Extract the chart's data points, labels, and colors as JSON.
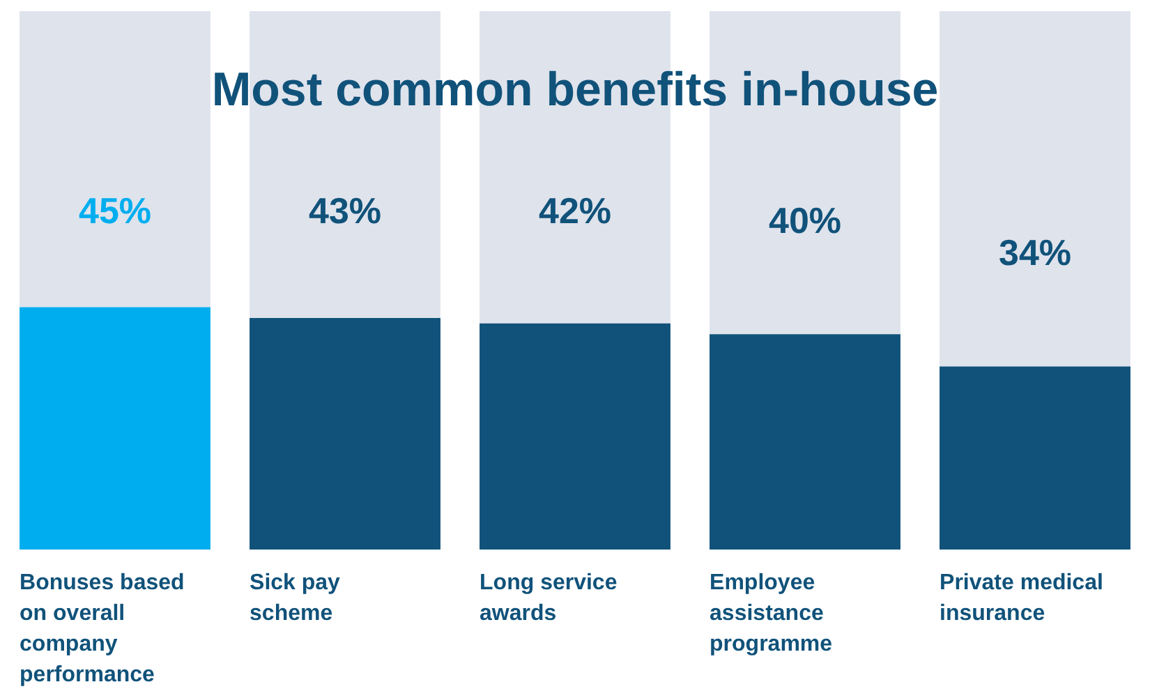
{
  "chart_data": {
    "type": "bar",
    "title": "Most common benefits in-house",
    "categories": [
      "Bonuses based on overall company performance",
      "Sick pay scheme",
      "Long service awards",
      "Employee assistance programme",
      "Private medical insurance"
    ],
    "stacked": true,
    "ylim": [
      0,
      100
    ],
    "tick_labels": "x",
    "grid": false,
    "legend": false,
    "series": [
      {
        "colors": [
          "#00aeef",
          "#10527a",
          "#10527a",
          "#10527a",
          "#10527a"
        ],
        "values": [
          45,
          43,
          42,
          40,
          34
        ],
        "value_labels": [
          "45%",
          "43%",
          "42%",
          "40%",
          "34%"
        ]
      },
      {
        "color": "#dfe3ec",
        "values": [
          55,
          57,
          58,
          60,
          66
        ]
      }
    ]
  }
}
